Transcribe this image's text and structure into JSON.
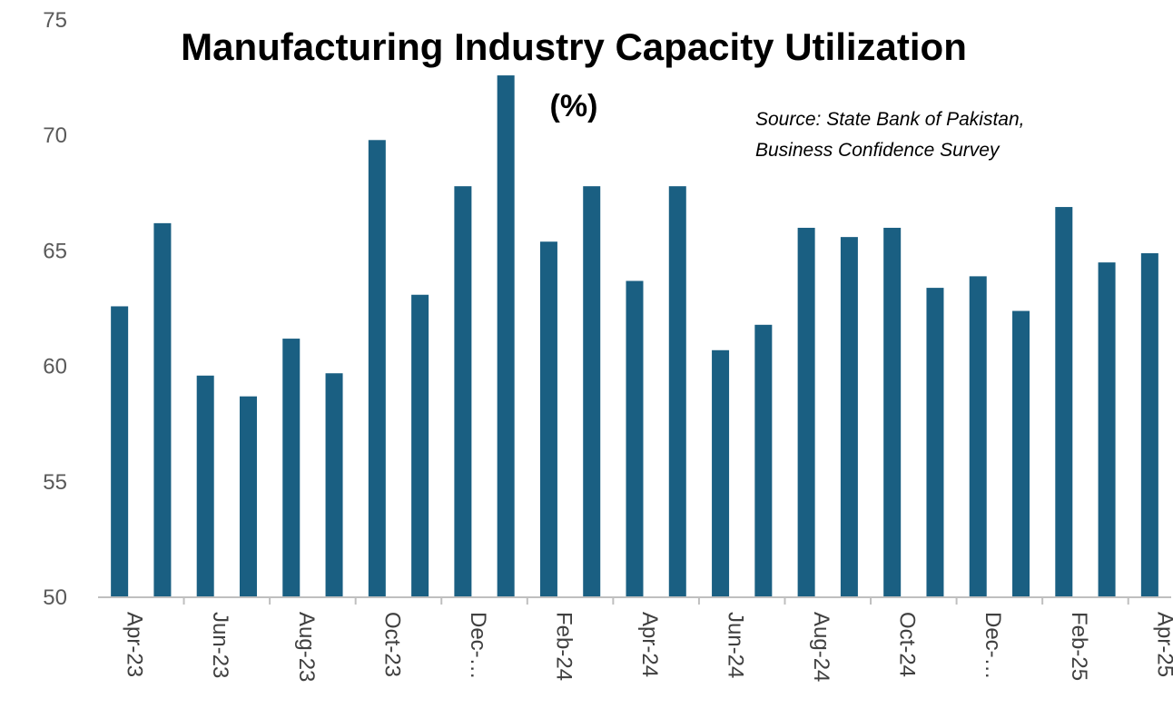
{
  "chart_data": {
    "type": "bar",
    "title": "Manufacturing Industry Capacity Utilization",
    "subtitle": "(%)",
    "source_lines": [
      "Source: State Bank of Pakistan,",
      "Business Confidence Survey"
    ],
    "xlabel": "",
    "ylabel": "",
    "ylim": [
      50,
      75
    ],
    "yticks": [
      50,
      55,
      60,
      65,
      70,
      75
    ],
    "grid": false,
    "legend": "none",
    "bar_color": "#1a5f82",
    "categories": [
      "Apr-23",
      "May-23",
      "Jun-23",
      "Jul-23",
      "Aug-23",
      "Sep-23",
      "Oct-23",
      "Nov-23",
      "Dec-23",
      "Jan-24",
      "Feb-24",
      "Mar-24",
      "Apr-24",
      "May-24",
      "Jun-24",
      "Jul-24",
      "Aug-24",
      "Sep-24",
      "Oct-24",
      "Nov-24",
      "Dec-24",
      "Jan-25",
      "Feb-25",
      "Mar-25",
      "Apr-25"
    ],
    "tick_labels": [
      "Apr-23",
      "Jun-23",
      "Aug-23",
      "Oct-23",
      "Dec-…",
      "Feb-24",
      "Apr-24",
      "Jun-24",
      "Aug-24",
      "Oct-24",
      "Dec-…",
      "Feb-25",
      "Apr-25"
    ],
    "values": [
      62.6,
      66.2,
      59.6,
      58.7,
      61.2,
      59.7,
      69.8,
      63.1,
      67.8,
      72.6,
      65.4,
      67.8,
      63.7,
      67.8,
      60.7,
      61.8,
      66.0,
      65.6,
      66.0,
      63.4,
      63.9,
      62.4,
      66.9,
      64.5,
      64.9
    ]
  }
}
